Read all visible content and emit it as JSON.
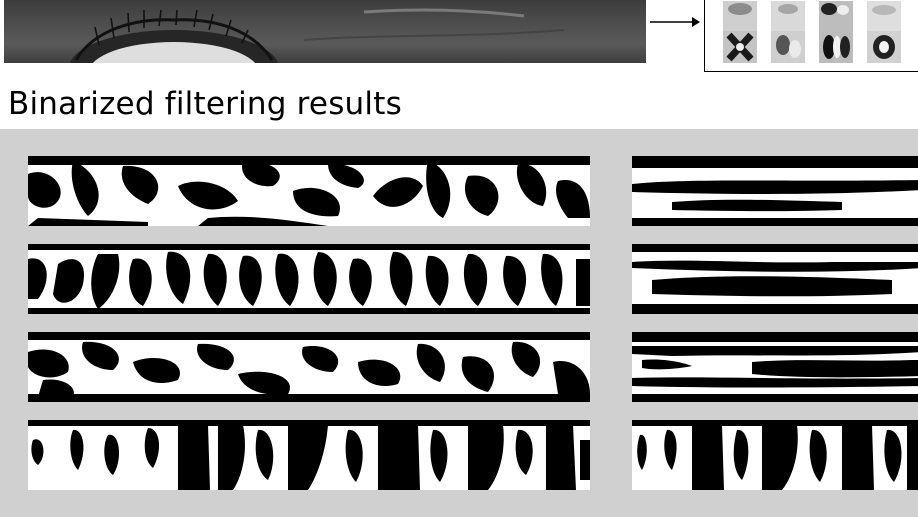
{
  "section": {
    "title": "Binarized filtering results"
  },
  "colors": {
    "panel": "#d0d0d0",
    "ink": "#000000",
    "paper": "#ffffff"
  },
  "icons": [
    "eye-image",
    "right-arrow-icon",
    "filter-kernel-icon"
  ],
  "layout_info": {
    "left_strip_count": 4,
    "right_strip_count": 4
  }
}
